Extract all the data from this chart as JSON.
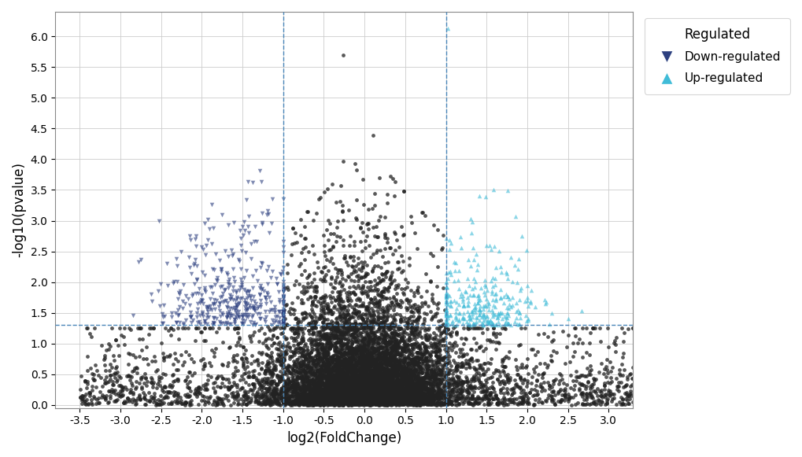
{
  "xlim": [
    -3.8,
    3.3
  ],
  "ylim": [
    -0.05,
    6.4
  ],
  "xlabel": "log2(FoldChange)",
  "ylabel": "-log10(pvalue)",
  "fc_threshold": 1.0,
  "pval_threshold": 1.3,
  "vline_color": "#4a86b8",
  "hline_color": "#4a86b8",
  "down_color": "#2d4080",
  "up_color": "#40bcd8",
  "nonsig_color": "#222222",
  "nonsig_color2": "#555555",
  "xticks": [
    -3.5,
    -3.0,
    -2.5,
    -2.0,
    -1.5,
    -1.0,
    -0.5,
    0.0,
    0.5,
    1.0,
    1.5,
    2.0,
    2.5,
    3.0
  ],
  "yticks": [
    0.0,
    0.5,
    1.0,
    1.5,
    2.0,
    2.5,
    3.0,
    3.5,
    4.0,
    4.5,
    5.0,
    5.5,
    6.0
  ],
  "legend_title": "Regulated",
  "legend_down": "Down-regulated",
  "legend_up": "Up-regulated",
  "seed": 42,
  "grid_color": "#cccccc",
  "bg_color": "#ffffff",
  "marker_size_ns": 12,
  "marker_size_sig": 16,
  "alpha_sig": 0.6,
  "alpha_ns": 0.75
}
